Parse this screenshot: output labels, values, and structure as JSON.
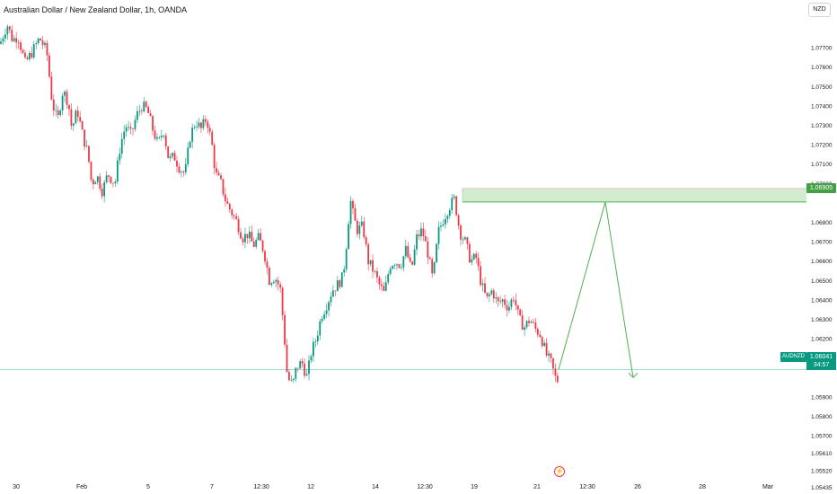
{
  "header": {
    "title": "Australian Dollar / New Zealand Dollar, 1h, OANDA",
    "currency_button": "NZD"
  },
  "price_scale": {
    "labels": [
      "1.07700",
      "1.07600",
      "1.07500",
      "1.07400",
      "1.07300",
      "1.07200",
      "1.07100",
      "1.07000",
      "1.06800",
      "1.06700",
      "1.06600",
      "1.06500",
      "1.06400",
      "1.06300",
      "1.06200",
      "1.06100",
      "1.05900",
      "1.05800",
      "1.05700",
      "1.05610",
      "1.05520",
      "1.05435"
    ],
    "label_values": [
      1.077,
      1.076,
      1.075,
      1.074,
      1.073,
      1.072,
      1.071,
      1.07,
      1.068,
      1.067,
      1.066,
      1.065,
      1.064,
      1.063,
      1.062,
      1.061,
      1.059,
      1.058,
      1.057,
      1.0561,
      1.0552,
      1.05435
    ]
  },
  "time_axis": {
    "labels": [
      "30",
      "Feb",
      "5",
      "7",
      "12:30",
      "12",
      "14",
      "12:30",
      "19",
      "21",
      "12:30",
      "26",
      "28",
      "Mar"
    ]
  },
  "markers": {
    "resistance_price": "1.06905",
    "current_price": "1.06041",
    "symbol": "AUDNZD",
    "countdown": "34:57"
  },
  "colors": {
    "up": "#089981",
    "down": "#f23645",
    "zone_fill": "#d3ecd0",
    "zone_border": "#4caf50",
    "arrow": "#4caf50",
    "price_line": "#089981",
    "tag_zone": "#43a047"
  },
  "icons": {
    "events": "lightning-bolt-icon"
  },
  "chart_data": {
    "type": "candlestick",
    "title": "Australian Dollar / New Zealand Dollar, 1h, OANDA",
    "path": [
      [
        0,
        1.0772
      ],
      [
        8,
        1.0782
      ],
      [
        14,
        1.0774
      ],
      [
        20,
        1.0776
      ],
      [
        28,
        1.0762
      ],
      [
        36,
        1.0768
      ],
      [
        44,
        1.0775
      ],
      [
        52,
        1.0768
      ],
      [
        58,
        1.0742
      ],
      [
        64,
        1.0732
      ],
      [
        70,
        1.0748
      ],
      [
        76,
        1.0742
      ],
      [
        80,
        1.0728
      ],
      [
        86,
        1.0738
      ],
      [
        92,
        1.0725
      ],
      [
        98,
        1.0715
      ],
      [
        102,
        1.07
      ],
      [
        108,
        1.0704
      ],
      [
        114,
        1.0696
      ],
      [
        120,
        1.0705
      ],
      [
        128,
        1.07
      ],
      [
        134,
        1.072
      ],
      [
        140,
        1.073
      ],
      [
        146,
        1.0725
      ],
      [
        152,
        1.0735
      ],
      [
        158,
        1.074
      ],
      [
        164,
        1.0738
      ],
      [
        170,
        1.0728
      ],
      [
        176,
        1.072
      ],
      [
        182,
        1.0728
      ],
      [
        188,
        1.0712
      ],
      [
        194,
        1.0714
      ],
      [
        200,
        1.0708
      ],
      [
        206,
        1.0705
      ],
      [
        212,
        1.0725
      ],
      [
        218,
        1.0732
      ],
      [
        224,
        1.0728
      ],
      [
        230,
        1.0734
      ],
      [
        236,
        1.072
      ],
      [
        240,
        1.0705
      ],
      [
        246,
        1.07
      ],
      [
        252,
        1.069
      ],
      [
        258,
        1.0685
      ],
      [
        264,
        1.068
      ],
      [
        270,
        1.0672
      ],
      [
        276,
        1.0674
      ],
      [
        282,
        1.0668
      ],
      [
        288,
        1.0672
      ],
      [
        294,
        1.0665
      ],
      [
        300,
        1.065
      ],
      [
        306,
        1.0652
      ],
      [
        312,
        1.0646
      ],
      [
        316,
        1.0625
      ],
      [
        320,
        1.06
      ],
      [
        326,
        1.0596
      ],
      [
        330,
        1.0605
      ],
      [
        336,
        1.0608
      ],
      [
        342,
        1.06
      ],
      [
        346,
        1.0612
      ],
      [
        352,
        1.062
      ],
      [
        358,
        1.0632
      ],
      [
        364,
        1.0638
      ],
      [
        370,
        1.0645
      ],
      [
        376,
        1.0648
      ],
      [
        382,
        1.0652
      ],
      [
        386,
        1.067
      ],
      [
        390,
        1.0692
      ],
      [
        394,
        1.0682
      ],
      [
        398,
        1.0676
      ],
      [
        404,
        1.0678
      ],
      [
        410,
        1.066
      ],
      [
        416,
        1.0655
      ],
      [
        422,
        1.0648
      ],
      [
        428,
        1.0643
      ],
      [
        434,
        1.0658
      ],
      [
        440,
        1.066
      ],
      [
        446,
        1.0658
      ],
      [
        452,
        1.0666
      ],
      [
        458,
        1.0655
      ],
      [
        464,
        1.0672
      ],
      [
        470,
        1.0676
      ],
      [
        476,
        1.0665
      ],
      [
        482,
        1.065
      ],
      [
        488,
        1.0675
      ],
      [
        494,
        1.0682
      ],
      [
        500,
        1.0688
      ],
      [
        506,
        1.0692
      ],
      [
        512,
        1.0675
      ],
      [
        518,
        1.067
      ],
      [
        524,
        1.066
      ],
      [
        530,
        1.0662
      ],
      [
        536,
        1.0648
      ],
      [
        542,
        1.064
      ],
      [
        548,
        1.0645
      ],
      [
        554,
        1.0638
      ],
      [
        560,
        1.064
      ],
      [
        566,
        1.0636
      ],
      [
        572,
        1.0642
      ],
      [
        578,
        1.063
      ],
      [
        584,
        1.0626
      ],
      [
        590,
        1.063
      ],
      [
        596,
        1.0625
      ],
      [
        602,
        1.0622
      ],
      [
        608,
        1.0612
      ],
      [
        614,
        1.0607
      ],
      [
        618,
        1.06
      ],
      [
        622,
        1.0598
      ]
    ],
    "resistance_zone": [
      1.06905,
      1.06975
    ],
    "current_price": 1.06041,
    "projection": [
      [
        622,
        1.06041
      ],
      [
        674,
        1.06905
      ],
      [
        705,
        1.06
      ]
    ],
    "ylim": [
      1.05435,
      1.0782
    ]
  }
}
